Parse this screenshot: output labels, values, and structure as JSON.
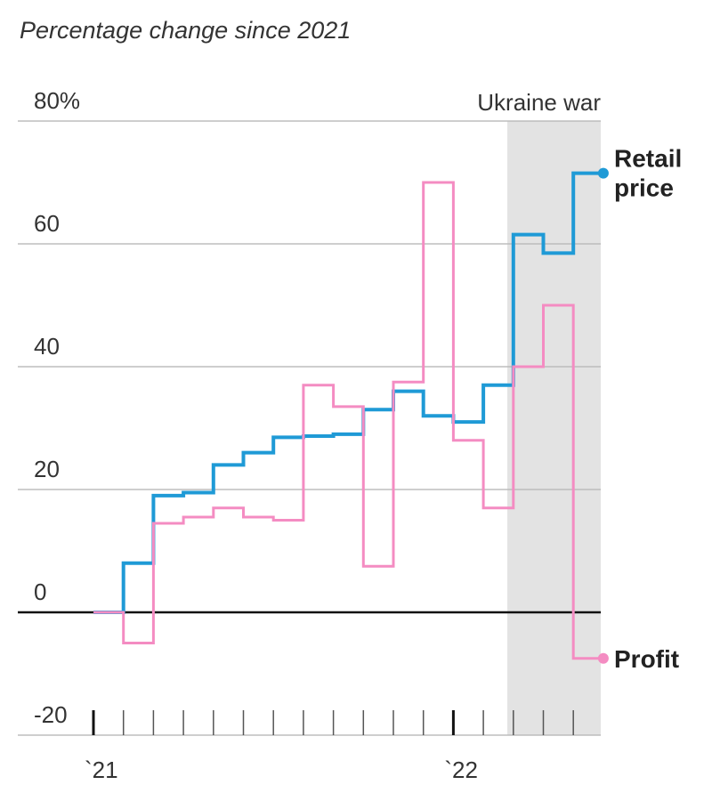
{
  "chart_data": {
    "type": "line",
    "subtitle": "Percentage change since 2021",
    "xlabel": "",
    "ylabel": "",
    "ylim": [
      -20,
      80
    ],
    "yticks": [
      {
        "value": 80,
        "label": "80%"
      },
      {
        "value": 60,
        "label": "60"
      },
      {
        "value": 40,
        "label": "40"
      },
      {
        "value": 20,
        "label": "20"
      },
      {
        "value": 0,
        "label": "0"
      },
      {
        "value": -20,
        "label": "-20"
      }
    ],
    "xticks": [
      {
        "month": 0,
        "label": "`21"
      },
      {
        "month": 12,
        "label": "`22"
      }
    ],
    "month_ticks": [
      0,
      1,
      2,
      3,
      4,
      5,
      6,
      7,
      8,
      9,
      10,
      11,
      12,
      13,
      14,
      15,
      16
    ],
    "grid": true,
    "shaded_region": {
      "start_month": 13.8,
      "end_month": 17,
      "label": "Ukraine war"
    },
    "series": [
      {
        "name": "Retail price",
        "label_lines": [
          "Retail",
          "price"
        ],
        "color": "#1f9ad6",
        "step": true,
        "x": [
          0,
          1,
          2,
          3,
          4,
          5,
          6,
          7,
          8,
          9,
          10,
          11,
          12,
          13,
          14,
          15,
          16
        ],
        "values": [
          0,
          8,
          19,
          19.5,
          24,
          26,
          28.5,
          28.7,
          29,
          33,
          36,
          32,
          31,
          37,
          61.5,
          58.5,
          71.5
        ]
      },
      {
        "name": "Profit",
        "label_lines": [
          "Profit"
        ],
        "color": "#f48cc2",
        "step": true,
        "x": [
          0,
          1,
          2,
          3,
          4,
          5,
          6,
          7,
          8,
          9,
          10,
          11,
          12,
          13,
          14,
          15,
          16
        ],
        "values": [
          0,
          -5,
          14.5,
          15.5,
          17,
          15.5,
          15,
          37,
          33.5,
          7.5,
          37.5,
          70,
          28,
          17,
          40,
          50,
          -7.5
        ]
      }
    ]
  }
}
